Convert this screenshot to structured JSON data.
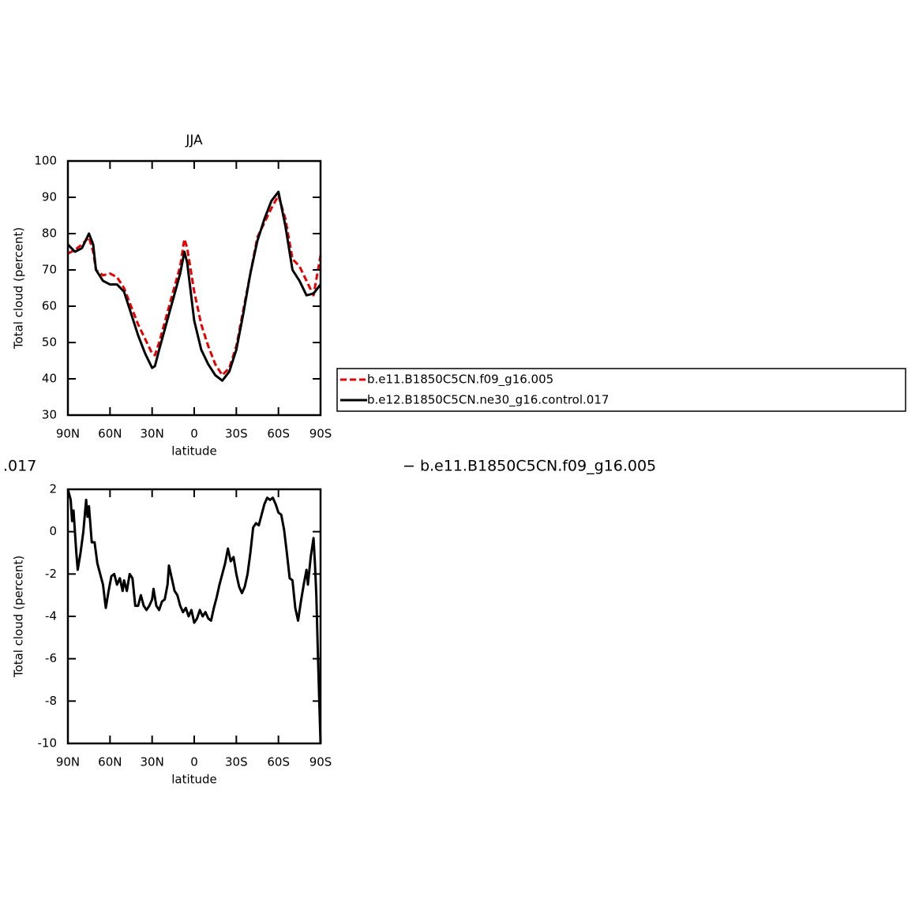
{
  "chart_data": [
    {
      "type": "line",
      "title": "JJA",
      "xlabel": "latitude",
      "ylabel": "Total cloud (percent)",
      "x": [
        90,
        85,
        80,
        75,
        72,
        70,
        65,
        60,
        55,
        50,
        45,
        40,
        35,
        30,
        28,
        25,
        20,
        15,
        10,
        7,
        5,
        0,
        -5,
        -10,
        -15,
        -20,
        -25,
        -30,
        -35,
        -40,
        -45,
        -50,
        -55,
        -60,
        -65,
        -70,
        -75,
        -80,
        -85,
        -90
      ],
      "series": [
        {
          "name": "b.e11.B1850C5CN.f09_g16.005",
          "color": "#e60000",
          "dash": "8 4",
          "values": [
            74.5,
            75.5,
            77,
            79,
            75,
            70,
            68.5,
            69,
            68,
            65,
            60,
            55,
            51,
            47,
            46.5,
            50,
            57,
            64,
            71,
            78.5,
            76,
            64,
            55,
            49,
            44,
            41,
            43,
            49,
            59,
            69,
            79,
            83,
            87,
            90.5,
            84,
            73,
            71,
            67,
            63,
            74
          ]
        },
        {
          "name": "b.e12.B1850C5CN.ne30_g16.control.017",
          "color": "#000000",
          "values": [
            77,
            75,
            76,
            80,
            77,
            70,
            67,
            66,
            66,
            64,
            58,
            52,
            47,
            43,
            43.5,
            48,
            55,
            62,
            69,
            75,
            72,
            56,
            48,
            44,
            41,
            39.5,
            42,
            48,
            58,
            69,
            78,
            84,
            89,
            91.5,
            82,
            70,
            67,
            63,
            63.5,
            66
          ]
        }
      ],
      "xlim": [
        90,
        -90
      ],
      "xticks": [
        {
          "value": 90,
          "label": "90N"
        },
        {
          "value": 60,
          "label": "60N"
        },
        {
          "value": 30,
          "label": "30N"
        },
        0,
        {
          "value": -30,
          "label": "30S"
        },
        {
          "value": -60,
          "label": "60S"
        },
        {
          "value": -90,
          "label": "90S"
        }
      ],
      "ylim": [
        30,
        100
      ],
      "yticks": [
        30,
        40,
        50,
        60,
        70,
        80,
        90,
        100
      ],
      "legend": "right"
    },
    {
      "type": "line",
      "title_left": ".017",
      "title_right": "− b.e11.B1850C5CN.f09_g16.005",
      "xlabel": "latitude",
      "ylabel": "Total cloud (percent)",
      "x": [
        90,
        88,
        87,
        86,
        84,
        83,
        81,
        79,
        77,
        76,
        75,
        73,
        71,
        69,
        67,
        65,
        63,
        61,
        59,
        57,
        55,
        53,
        51,
        50,
        48,
        46,
        44,
        42,
        40,
        38,
        36,
        34,
        32,
        30,
        29,
        27,
        25,
        23,
        21,
        19,
        18,
        16,
        14,
        12,
        10,
        8,
        6,
        4,
        2,
        0,
        -2,
        -4,
        -6,
        -8,
        -10,
        -12,
        -14,
        -16,
        -18,
        -20,
        -22,
        -24,
        -26,
        -28,
        -30,
        -32,
        -34,
        -36,
        -38,
        -40,
        -42,
        -44,
        -46,
        -48,
        -50,
        -52,
        -54,
        -56,
        -58,
        -60,
        -62,
        -64,
        -66,
        -68,
        -70,
        -72,
        -74,
        -76,
        -78,
        -80,
        -81,
        -83,
        -85,
        -86,
        -87,
        -88,
        -89,
        -90
      ],
      "series": [
        {
          "color": "#000000",
          "values": [
            2,
            1.5,
            0.5,
            1,
            -1,
            -1.8,
            -1,
            0,
            1.5,
            0.7,
            1.2,
            -0.5,
            -0.5,
            -1.5,
            -2,
            -2.5,
            -3.6,
            -2.8,
            -2.1,
            -2,
            -2.5,
            -2.2,
            -2.8,
            -2.3,
            -2.8,
            -2,
            -2.2,
            -3.5,
            -3.5,
            -3,
            -3.5,
            -3.7,
            -3.5,
            -3.2,
            -2.7,
            -3.5,
            -3.7,
            -3.3,
            -3.2,
            -2.5,
            -1.6,
            -2.2,
            -2.8,
            -3,
            -3.5,
            -3.8,
            -3.6,
            -4,
            -3.7,
            -4.3,
            -4.1,
            -3.7,
            -4,
            -3.8,
            -4.1,
            -4.2,
            -3.6,
            -3.1,
            -2.5,
            -2,
            -1.5,
            -0.8,
            -1.4,
            -1.2,
            -2,
            -2.6,
            -2.9,
            -2.6,
            -2,
            -1,
            0.2,
            0.4,
            0.3,
            0.8,
            1.3,
            1.6,
            1.5,
            1.6,
            1.3,
            0.9,
            0.8,
            0.1,
            -1,
            -2.2,
            -2.3,
            -3.6,
            -4.2,
            -3.3,
            -2.5,
            -1.8,
            -2.5,
            -1.2,
            -0.3,
            -1.5,
            -3,
            -5.5,
            -7.8,
            -10
          ]
        }
      ],
      "xlim": [
        90,
        -90
      ],
      "xticks": [
        {
          "value": 90,
          "label": "90N"
        },
        {
          "value": 60,
          "label": "60N"
        },
        {
          "value": 30,
          "label": "30N"
        },
        0,
        {
          "value": -30,
          "label": "30S"
        },
        {
          "value": -60,
          "label": "60S"
        },
        {
          "value": -90,
          "label": "90S"
        }
      ],
      "ylim": [
        -10,
        2
      ],
      "yticks": [
        -10,
        -8,
        -6,
        -4,
        -2,
        0,
        2
      ]
    }
  ]
}
